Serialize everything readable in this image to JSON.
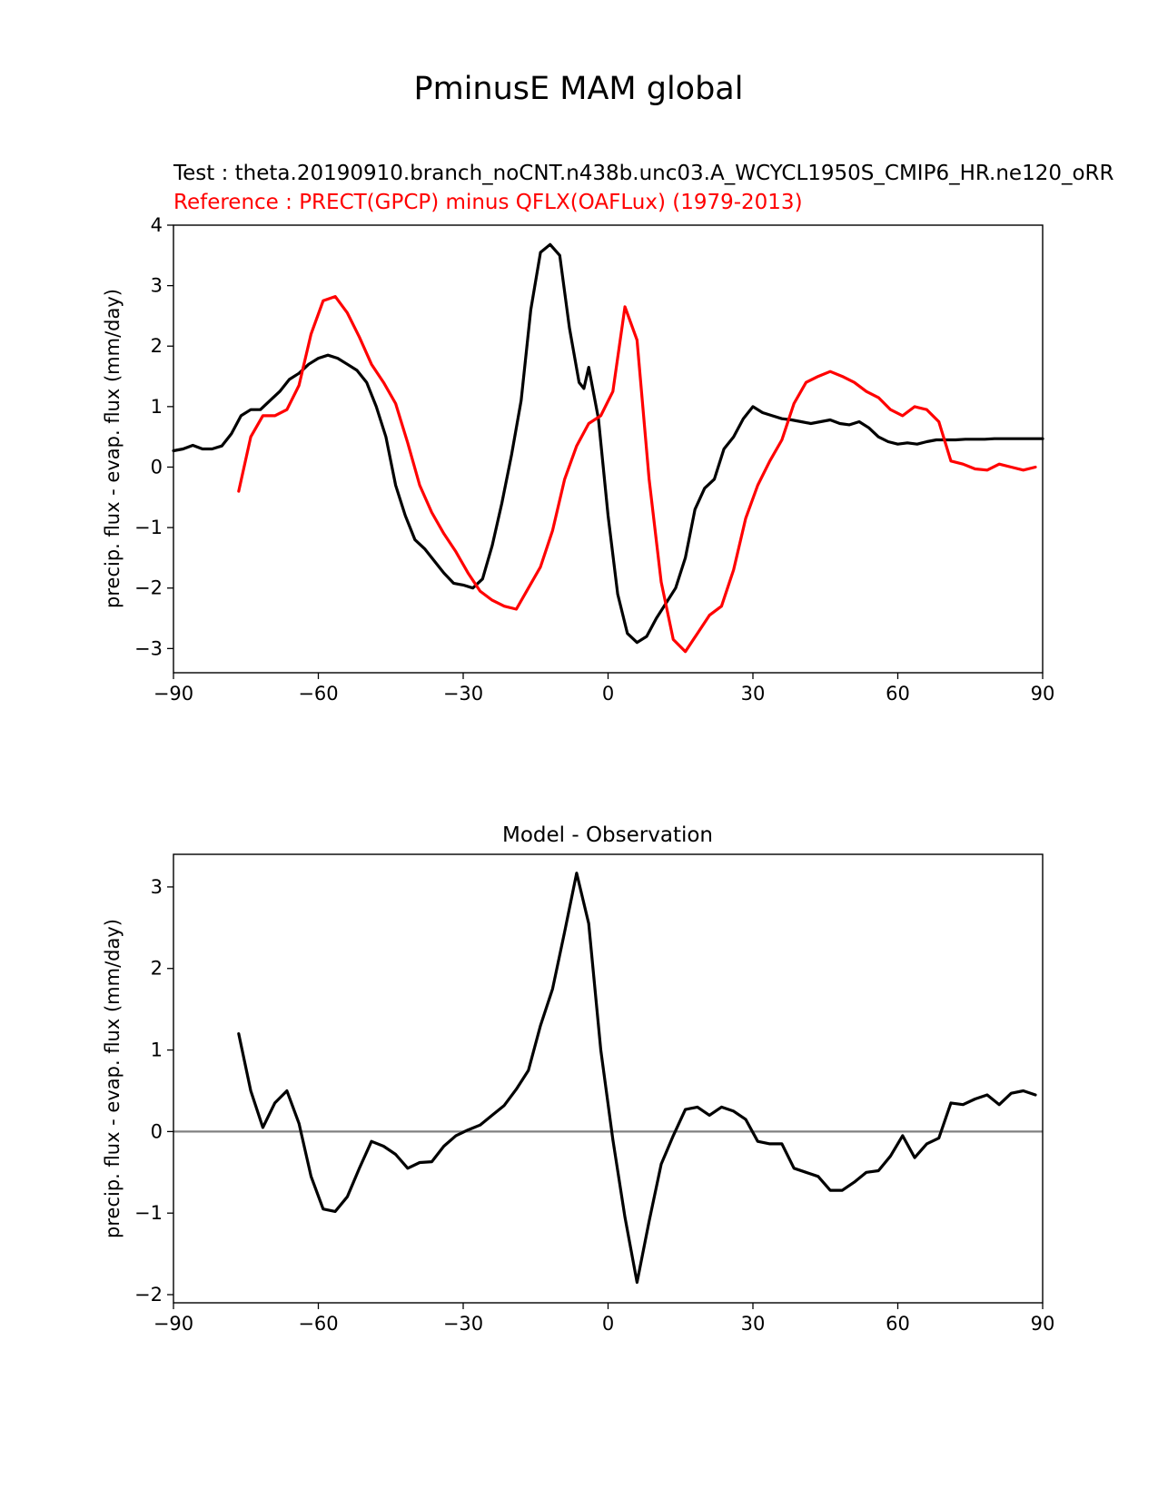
{
  "figure_title": "PminusE MAM global",
  "colors": {
    "test": "#000000",
    "reference": "#ff0000",
    "zero_line": "#808080",
    "axes": "#000000"
  },
  "chart_data": [
    {
      "type": "line",
      "test_label": "Test : theta.20190910.branch_noCNT.n438b.unc03.A_WCYCL1950S_CMIP6_HR.ne120_oRR",
      "reference_label": "Reference : PRECT(GPCP) minus QFLX(OAFLux) (1979-2013)",
      "xlabel": "",
      "ylabel": "precip. flux - evap. flux (mm/day)",
      "xlim": [
        -90,
        90
      ],
      "ylim": [
        -3.4,
        4.0
      ],
      "xticks": [
        -90,
        -60,
        -30,
        0,
        30,
        60,
        90
      ],
      "xtick_labels": [
        "−90",
        "−60",
        "−30",
        "0",
        "30",
        "60",
        "90"
      ],
      "yticks": [
        -3,
        -2,
        -1,
        0,
        1,
        2,
        3,
        4
      ],
      "ytick_labels": [
        "−3",
        "−2",
        "−1",
        "0",
        "1",
        "2",
        "3",
        "4"
      ],
      "series": [
        {
          "name": "Test",
          "color": "#000000",
          "x": [
            -90,
            -88,
            -86,
            -84,
            -82,
            -80,
            -78,
            -76,
            -74,
            -72,
            -70,
            -68,
            -66,
            -64,
            -62,
            -60,
            -58,
            -56,
            -54,
            -52,
            -50,
            -48,
            -46,
            -44,
            -42,
            -40,
            -38,
            -36,
            -34,
            -32,
            -30,
            -28,
            -26,
            -24,
            -22,
            -20,
            -18,
            -16,
            -14,
            -12,
            -10,
            -8,
            -6,
            -5,
            -4,
            -2,
            0,
            2,
            4,
            6,
            8,
            10,
            12,
            14,
            16,
            18,
            20,
            22,
            24,
            26,
            28,
            30,
            32,
            34,
            36,
            38,
            40,
            42,
            44,
            46,
            48,
            50,
            52,
            54,
            56,
            58,
            60,
            62,
            64,
            66,
            68,
            70,
            72,
            74,
            76,
            78,
            80,
            82,
            84,
            86,
            88,
            90
          ],
          "y": [
            0.27,
            0.3,
            0.36,
            0.3,
            0.3,
            0.35,
            0.55,
            0.85,
            0.95,
            0.95,
            1.1,
            1.25,
            1.45,
            1.55,
            1.7,
            1.8,
            1.85,
            1.8,
            1.7,
            1.6,
            1.4,
            1.0,
            0.5,
            -0.3,
            -0.8,
            -1.2,
            -1.35,
            -1.55,
            -1.75,
            -1.92,
            -1.95,
            -2.0,
            -1.85,
            -1.3,
            -0.6,
            0.2,
            1.1,
            2.6,
            3.55,
            3.68,
            3.5,
            2.3,
            1.4,
            1.3,
            1.65,
            0.8,
            -0.8,
            -2.1,
            -2.75,
            -2.9,
            -2.8,
            -2.5,
            -2.25,
            -2.0,
            -1.5,
            -0.7,
            -0.35,
            -0.2,
            0.3,
            0.5,
            0.8,
            1.0,
            0.9,
            0.85,
            0.8,
            0.78,
            0.75,
            0.72,
            0.75,
            0.78,
            0.72,
            0.7,
            0.75,
            0.65,
            0.5,
            0.42,
            0.38,
            0.4,
            0.38,
            0.42,
            0.45,
            0.45,
            0.45,
            0.46,
            0.46,
            0.46,
            0.47,
            0.47,
            0.47,
            0.47,
            0.47,
            0.47
          ]
        },
        {
          "name": "Reference",
          "color": "#ff0000",
          "x": [
            -76.5,
            -74,
            -71.5,
            -69,
            -66.5,
            -64,
            -61.5,
            -59,
            -56.5,
            -54,
            -51.5,
            -49,
            -46.5,
            -44,
            -41.5,
            -39,
            -36.5,
            -34,
            -31.5,
            -29,
            -26.5,
            -24,
            -21.5,
            -19,
            -16.5,
            -14,
            -11.5,
            -9,
            -6.5,
            -4,
            -1.5,
            1,
            3.5,
            6,
            8.5,
            11,
            13.5,
            16,
            18.5,
            21,
            23.5,
            26,
            28.5,
            31,
            33.5,
            36,
            38.5,
            41,
            43.5,
            46,
            48.5,
            51,
            53.5,
            56,
            58.5,
            61,
            63.5,
            66,
            68.5,
            71,
            73.5,
            76,
            78.5,
            81,
            83.5,
            86,
            88.5
          ],
          "y": [
            -0.4,
            0.5,
            0.85,
            0.85,
            0.95,
            1.35,
            2.2,
            2.75,
            2.82,
            2.55,
            2.15,
            1.7,
            1.4,
            1.05,
            0.4,
            -0.3,
            -0.75,
            -1.1,
            -1.4,
            -1.75,
            -2.05,
            -2.2,
            -2.3,
            -2.35,
            -2.0,
            -1.65,
            -1.05,
            -0.2,
            0.35,
            0.72,
            0.85,
            1.25,
            2.65,
            2.1,
            -0.2,
            -1.9,
            -2.85,
            -3.05,
            -2.75,
            -2.45,
            -2.3,
            -1.7,
            -0.85,
            -0.3,
            0.1,
            0.45,
            1.05,
            1.4,
            1.5,
            1.58,
            1.5,
            1.4,
            1.25,
            1.15,
            0.95,
            0.85,
            1.0,
            0.95,
            0.75,
            0.1,
            0.05,
            -0.03,
            -0.05,
            0.05,
            0.0,
            -0.05,
            0.0
          ]
        }
      ]
    },
    {
      "type": "line",
      "title": "Model - Observation",
      "xlabel": "",
      "ylabel": "precip. flux - evap. flux (mm/day)",
      "xlim": [
        -90,
        90
      ],
      "ylim": [
        -2.1,
        3.4
      ],
      "xticks": [
        -90,
        -60,
        -30,
        0,
        30,
        60,
        90
      ],
      "xtick_labels": [
        "−90",
        "−60",
        "−30",
        "0",
        "30",
        "60",
        "90"
      ],
      "yticks": [
        -2,
        -1,
        0,
        1,
        2,
        3
      ],
      "ytick_labels": [
        "−2",
        "−1",
        "0",
        "1",
        "2",
        "3"
      ],
      "zero_line": 0,
      "series": [
        {
          "name": "Model - Observation",
          "color": "#000000",
          "x": [
            -76.5,
            -74,
            -71.5,
            -69,
            -66.5,
            -64,
            -61.5,
            -59,
            -56.5,
            -54,
            -51.5,
            -49,
            -46.5,
            -44,
            -41.5,
            -39,
            -36.5,
            -34,
            -31.5,
            -29,
            -26.5,
            -24,
            -21.5,
            -19,
            -16.5,
            -14,
            -11.5,
            -9,
            -6.5,
            -4,
            -1.5,
            1,
            3.5,
            6,
            8.5,
            11,
            13.5,
            16,
            18.5,
            21,
            23.5,
            26,
            28.5,
            31,
            33.5,
            36,
            38.5,
            41,
            43.5,
            46,
            48.5,
            51,
            53.5,
            56,
            58.5,
            61,
            63.5,
            66,
            68.5,
            71,
            73.5,
            76,
            78.5,
            81,
            83.5,
            86,
            88.5
          ],
          "y": [
            1.2,
            0.5,
            0.05,
            0.35,
            0.5,
            0.1,
            -0.55,
            -0.95,
            -0.98,
            -0.8,
            -0.45,
            -0.12,
            -0.18,
            -0.28,
            -0.45,
            -0.38,
            -0.37,
            -0.18,
            -0.05,
            0.02,
            0.08,
            0.2,
            0.32,
            0.52,
            0.75,
            1.3,
            1.75,
            2.45,
            3.17,
            2.55,
            1.0,
            -0.1,
            -1.05,
            -1.85,
            -1.1,
            -0.4,
            -0.05,
            0.27,
            0.3,
            0.2,
            0.3,
            0.25,
            0.15,
            -0.12,
            -0.15,
            -0.15,
            -0.45,
            -0.5,
            -0.55,
            -0.72,
            -0.72,
            -0.62,
            -0.5,
            -0.48,
            -0.3,
            -0.05,
            -0.32,
            -0.15,
            -0.08,
            0.35,
            0.33,
            0.4,
            0.45,
            0.33,
            0.47,
            0.5,
            0.45
          ]
        }
      ]
    }
  ]
}
